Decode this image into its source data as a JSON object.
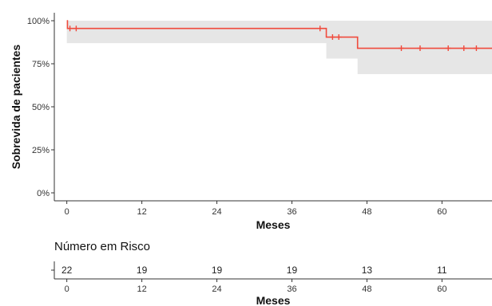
{
  "chart_data": {
    "type": "line",
    "xlabel": "Meses",
    "ylabel": "Sobrevida de pacientes",
    "xlim": [
      -2,
      68
    ],
    "ylim": [
      0,
      1
    ],
    "x_ticks": [
      0,
      12,
      24,
      36,
      48,
      60
    ],
    "y_ticks": [
      {
        "value": 0,
        "label": "0%"
      },
      {
        "value": 0.25,
        "label": "25%"
      },
      {
        "value": 0.5,
        "label": "50%"
      },
      {
        "value": 0.75,
        "label": "75%"
      },
      {
        "value": 1,
        "label": "100%"
      }
    ],
    "grid": false,
    "colors": {
      "curve": "#f04a3c",
      "ci_band": "#e6e6e6",
      "axis": "#333333"
    },
    "series": [
      {
        "steps": [
          {
            "x": 0,
            "y": 1.0
          },
          {
            "x": 0.1,
            "y": 0.955
          },
          {
            "x": 41.5,
            "y": 0.905
          },
          {
            "x": 46.5,
            "y": 0.84
          }
        ],
        "x_end": 68,
        "ci": [
          {
            "x": 0,
            "lower": 0.87,
            "upper": 1.0
          },
          {
            "x": 41.5,
            "lower": 0.78,
            "upper": 1.0
          },
          {
            "x": 46.5,
            "lower": 0.69,
            "upper": 1.0
          }
        ],
        "censored": [
          {
            "x": 0.5,
            "y": 0.955
          },
          {
            "x": 1.5,
            "y": 0.955
          },
          {
            "x": 40.5,
            "y": 0.955
          },
          {
            "x": 42.5,
            "y": 0.905
          },
          {
            "x": 43.5,
            "y": 0.905
          },
          {
            "x": 53.5,
            "y": 0.84
          },
          {
            "x": 56.5,
            "y": 0.84
          },
          {
            "x": 61,
            "y": 0.84
          },
          {
            "x": 63.5,
            "y": 0.84
          },
          {
            "x": 65.5,
            "y": 0.84
          }
        ]
      }
    ],
    "risk_table": {
      "title": "Número em Risco",
      "xlabel": "Meses",
      "x": [
        0,
        12,
        24,
        36,
        48,
        60
      ],
      "counts": [
        "22",
        "19",
        "19",
        "19",
        "13",
        "11"
      ]
    }
  }
}
